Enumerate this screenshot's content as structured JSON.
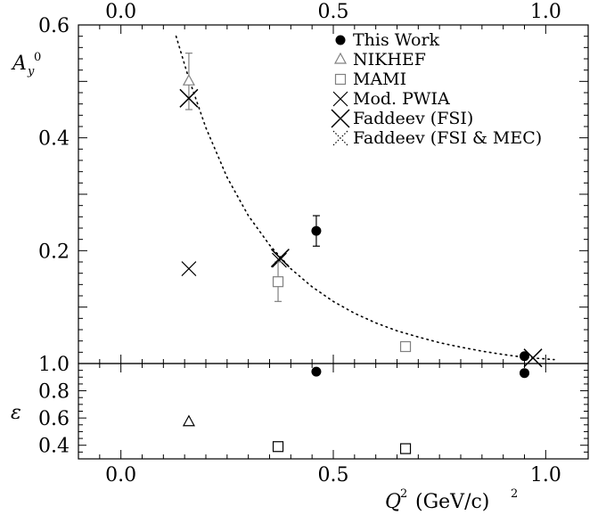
{
  "chart_data": [
    {
      "type": "scatter",
      "panel": "top",
      "x_range": [
        -0.1,
        1.1
      ],
      "y_range": [
        0.0,
        0.6
      ],
      "x_ticks_top": [
        "0.0",
        "0.5",
        "1.0"
      ],
      "y_ticks": [
        "0.2",
        "0.4",
        "0.6"
      ],
      "ylabel": {
        "main": "A",
        "sub": "y",
        "sup": "0"
      },
      "legend_position": "top-right",
      "grid": false,
      "series": [
        {
          "name": "This Work",
          "marker": "filled-circle",
          "color": "#000000",
          "points": [
            {
              "x": 0.46,
              "y": 0.235,
              "yerr": 0.027
            },
            {
              "x": 0.95,
              "y": 0.013,
              "yerr": 0.0
            }
          ]
        },
        {
          "name": "NIKHEF",
          "marker": "open-triangle",
          "color": "#808080",
          "points": [
            {
              "x": 0.16,
              "y": 0.5,
              "yerr": 0.05
            }
          ]
        },
        {
          "name": "MAMI",
          "marker": "open-square",
          "color": "#808080",
          "points": [
            {
              "x": 0.37,
              "y": 0.145,
              "yerr": 0.035
            },
            {
              "x": 0.67,
              "y": 0.03,
              "yerr": 0.0
            }
          ]
        },
        {
          "name": "Mod. PWIA",
          "marker": "small-x",
          "color": "#000000",
          "points": [
            {
              "x": 0.16,
              "y": 0.168
            },
            {
              "x": 0.373,
              "y": 0.183
            }
          ]
        },
        {
          "name": "Faddeev (FSI)",
          "marker": "large-x",
          "color": "#000000",
          "points": [
            {
              "x": 0.16,
              "y": 0.47
            },
            {
              "x": 0.375,
              "y": 0.187
            },
            {
              "x": 0.97,
              "y": 0.01
            }
          ]
        },
        {
          "name": "Faddeev (FSI & MEC)",
          "marker": "dotted-x",
          "color": "#000000",
          "points": [
            {
              "x": 0.16,
              "y": 0.47
            },
            {
              "x": 0.375,
              "y": 0.187
            }
          ]
        }
      ],
      "curve": {
        "style": "dotted",
        "color": "#000000",
        "points": [
          [
            0.13,
            0.58
          ],
          [
            0.16,
            0.505
          ],
          [
            0.2,
            0.418
          ],
          [
            0.25,
            0.33
          ],
          [
            0.3,
            0.262
          ],
          [
            0.35,
            0.21
          ],
          [
            0.4,
            0.168
          ],
          [
            0.45,
            0.136
          ],
          [
            0.5,
            0.11
          ],
          [
            0.55,
            0.089
          ],
          [
            0.6,
            0.072
          ],
          [
            0.65,
            0.058
          ],
          [
            0.7,
            0.047
          ],
          [
            0.75,
            0.037
          ],
          [
            0.8,
            0.029
          ],
          [
            0.85,
            0.022
          ],
          [
            0.9,
            0.016
          ],
          [
            0.95,
            0.011
          ],
          [
            1.02,
            0.007
          ]
        ]
      }
    },
    {
      "type": "scatter",
      "panel": "bottom",
      "x_range": [
        -0.1,
        1.1
      ],
      "y_range": [
        0.3,
        1.0
      ],
      "x_ticks": [
        "0.0",
        "0.5",
        "1.0"
      ],
      "y_ticks": [
        "0.4",
        "0.6",
        "0.8",
        "1.0"
      ],
      "xlabel": {
        "main": "Q",
        "sup": "2",
        "units": "(GeV/c)",
        "units_sup": "2"
      },
      "ylabel": "ε",
      "series": [
        {
          "name": "This Work",
          "marker": "filled-circle",
          "color": "#000000",
          "points": [
            {
              "x": 0.46,
              "y": 0.94
            },
            {
              "x": 0.95,
              "y": 0.93
            }
          ]
        },
        {
          "name": "NIKHEF",
          "marker": "open-triangle",
          "color": "#000000",
          "points": [
            {
              "x": 0.16,
              "y": 0.57
            }
          ]
        },
        {
          "name": "MAMI",
          "marker": "open-square",
          "color": "#000000",
          "points": [
            {
              "x": 0.37,
              "y": 0.39
            },
            {
              "x": 0.67,
              "y": 0.375
            }
          ]
        }
      ]
    }
  ]
}
